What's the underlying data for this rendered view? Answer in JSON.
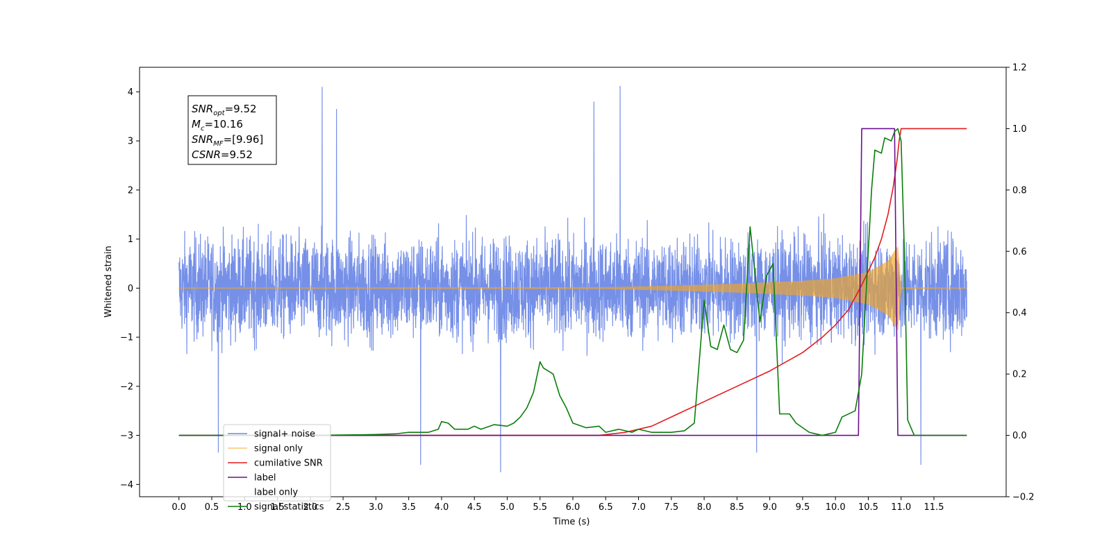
{
  "chart_data": {
    "type": "line",
    "xlabel": "Time (s)",
    "ylabel_left": "Whitened strain",
    "ylabel_right": "",
    "xlim": [
      -0.6,
      12.6
    ],
    "ylim_left": [
      -4.25,
      4.5
    ],
    "ylim_right": [
      -0.2,
      1.2
    ],
    "x_ticks": [
      "0.0",
      "0.5",
      "1.0",
      "1.5",
      "2.0",
      "2.5",
      "3.0",
      "3.5",
      "4.0",
      "4.5",
      "5.0",
      "5.5",
      "6.0",
      "6.5",
      "7.0",
      "7.5",
      "8.0",
      "8.5",
      "9.0",
      "9.5",
      "10.0",
      "10.5",
      "11.0",
      "11.5"
    ],
    "y_ticks_left": [
      "−4",
      "−3",
      "−2",
      "−1",
      "0",
      "1",
      "2",
      "3",
      "4"
    ],
    "y_ticks_right": [
      "−0.2",
      "0.0",
      "0.2",
      "0.4",
      "0.6",
      "0.8",
      "1.0",
      "1.2"
    ],
    "grid": false,
    "legend_position": "bottom-left",
    "annotation": [
      {
        "sym": "SNR",
        "sub": "opt",
        "value": "=9.52"
      },
      {
        "sym": "M",
        "sub": "c",
        "value": "=10.16"
      },
      {
        "sym": "SNR",
        "sub": "MF",
        "value": "=[9.96]"
      },
      {
        "sym": "CSNR",
        "sub": "",
        "value": "=9.52"
      }
    ],
    "series": [
      {
        "name": "signal+ noise",
        "axis": "left",
        "color": "#6a87e6",
        "style": "noise",
        "x_range": [
          0.0,
          12.0
        ],
        "y_band": [
          -3.75,
          4.12
        ],
        "envelope_typical": 2.1,
        "spike_extremes": [
          {
            "x": 0.6,
            "y": -3.35
          },
          {
            "x": 2.18,
            "y": 4.1
          },
          {
            "x": 2.4,
            "y": 3.65
          },
          {
            "x": 3.68,
            "y": -3.6
          },
          {
            "x": 4.9,
            "y": -3.75
          },
          {
            "x": 6.72,
            "y": 4.12
          },
          {
            "x": 6.32,
            "y": 3.8
          },
          {
            "x": 8.8,
            "y": -3.35
          },
          {
            "x": 11.3,
            "y": -3.6
          }
        ]
      },
      {
        "name": "signal only",
        "axis": "left",
        "color": "#f5a623",
        "style": "chirp",
        "x_range": [
          0.0,
          12.0
        ],
        "envelope": [
          {
            "x": 0.0,
            "a": 0.01
          },
          {
            "x": 6.5,
            "a": 0.02
          },
          {
            "x": 7.5,
            "a": 0.05
          },
          {
            "x": 8.5,
            "a": 0.09
          },
          {
            "x": 9.5,
            "a": 0.15
          },
          {
            "x": 10.0,
            "a": 0.2
          },
          {
            "x": 10.5,
            "a": 0.33
          },
          {
            "x": 10.8,
            "a": 0.55
          },
          {
            "x": 10.95,
            "a": 0.85
          },
          {
            "x": 11.0,
            "a": 0.02
          },
          {
            "x": 12.0,
            "a": 0.01
          }
        ]
      },
      {
        "name": "cumilative SNR",
        "axis": "right",
        "color": "#e31a1c",
        "points": [
          [
            0.0,
            0.0
          ],
          [
            6.4,
            0.0
          ],
          [
            6.8,
            0.01
          ],
          [
            7.2,
            0.03
          ],
          [
            7.6,
            0.07
          ],
          [
            8.0,
            0.11
          ],
          [
            8.5,
            0.16
          ],
          [
            9.0,
            0.21
          ],
          [
            9.5,
            0.27
          ],
          [
            9.8,
            0.32
          ],
          [
            10.0,
            0.36
          ],
          [
            10.2,
            0.41
          ],
          [
            10.4,
            0.49
          ],
          [
            10.6,
            0.58
          ],
          [
            10.7,
            0.64
          ],
          [
            10.8,
            0.72
          ],
          [
            10.88,
            0.81
          ],
          [
            10.94,
            0.9
          ],
          [
            10.97,
            0.96
          ],
          [
            11.0,
            1.0
          ],
          [
            12.0,
            1.0
          ]
        ]
      },
      {
        "name": "label",
        "axis": "right",
        "color": "#6a0f8e",
        "points": [
          [
            0.0,
            0.0
          ],
          [
            10.35,
            0.0
          ],
          [
            10.4,
            1.0
          ],
          [
            10.9,
            1.0
          ],
          [
            10.95,
            0.0
          ],
          [
            12.0,
            0.0
          ]
        ]
      },
      {
        "name": "label only",
        "axis": "right",
        "color": "#9e9e9e",
        "legend_only": true
      },
      {
        "name": "signal statistics",
        "axis": "right",
        "color": "#0a7d0a",
        "points": [
          [
            0.0,
            0.0
          ],
          [
            1.0,
            0.0
          ],
          [
            2.0,
            0.0
          ],
          [
            2.8,
            0.002
          ],
          [
            3.0,
            0.003
          ],
          [
            3.3,
            0.005
          ],
          [
            3.5,
            0.01
          ],
          [
            3.8,
            0.01
          ],
          [
            3.95,
            0.02
          ],
          [
            4.0,
            0.045
          ],
          [
            4.1,
            0.04
          ],
          [
            4.2,
            0.02
          ],
          [
            4.4,
            0.02
          ],
          [
            4.5,
            0.03
          ],
          [
            4.6,
            0.02
          ],
          [
            4.8,
            0.035
          ],
          [
            5.0,
            0.03
          ],
          [
            5.1,
            0.04
          ],
          [
            5.2,
            0.06
          ],
          [
            5.3,
            0.09
          ],
          [
            5.4,
            0.14
          ],
          [
            5.5,
            0.24
          ],
          [
            5.55,
            0.22
          ],
          [
            5.7,
            0.2
          ],
          [
            5.8,
            0.13
          ],
          [
            5.9,
            0.09
          ],
          [
            6.0,
            0.04
          ],
          [
            6.2,
            0.025
          ],
          [
            6.4,
            0.03
          ],
          [
            6.5,
            0.01
          ],
          [
            6.7,
            0.02
          ],
          [
            6.9,
            0.01
          ],
          [
            7.0,
            0.02
          ],
          [
            7.2,
            0.01
          ],
          [
            7.5,
            0.01
          ],
          [
            7.7,
            0.015
          ],
          [
            7.85,
            0.04
          ],
          [
            8.0,
            0.44
          ],
          [
            8.1,
            0.29
          ],
          [
            8.2,
            0.28
          ],
          [
            8.3,
            0.36
          ],
          [
            8.4,
            0.28
          ],
          [
            8.5,
            0.27
          ],
          [
            8.6,
            0.31
          ],
          [
            8.7,
            0.68
          ],
          [
            8.85,
            0.37
          ],
          [
            8.95,
            0.52
          ],
          [
            9.05,
            0.56
          ],
          [
            9.15,
            0.07
          ],
          [
            9.3,
            0.07
          ],
          [
            9.4,
            0.04
          ],
          [
            9.6,
            0.01
          ],
          [
            9.8,
            0.0
          ],
          [
            10.0,
            0.01
          ],
          [
            10.1,
            0.06
          ],
          [
            10.3,
            0.08
          ],
          [
            10.4,
            0.2
          ],
          [
            10.45,
            0.4
          ],
          [
            10.5,
            0.6
          ],
          [
            10.55,
            0.8
          ],
          [
            10.6,
            0.93
          ],
          [
            10.7,
            0.92
          ],
          [
            10.75,
            0.97
          ],
          [
            10.85,
            0.96
          ],
          [
            10.9,
            0.99
          ],
          [
            10.95,
            1.0
          ],
          [
            11.0,
            0.96
          ],
          [
            11.05,
            0.6
          ],
          [
            11.1,
            0.05
          ],
          [
            11.2,
            0.0
          ],
          [
            12.0,
            0.0
          ]
        ]
      }
    ]
  }
}
